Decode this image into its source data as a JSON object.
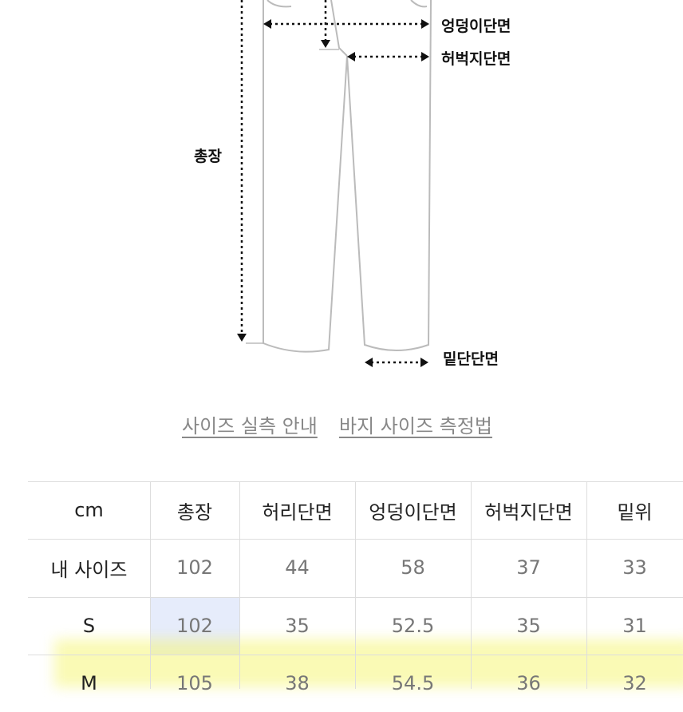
{
  "diagram": {
    "labels": [
      "엉덩이단면",
      "허벅지단면",
      "총장",
      "밑단단면"
    ]
  },
  "links": [
    "사이즈 실측 안내",
    "바지 사이즈 측정법"
  ],
  "table": {
    "header": [
      "cm",
      "총장",
      "허리단면",
      "엉덩이단면",
      "허벅지단면",
      "밑위"
    ],
    "rows": [
      [
        "내 사이즈",
        "102",
        "44",
        "58",
        "37",
        "33"
      ],
      [
        "S",
        "102",
        "35",
        "52.5",
        "35",
        "31"
      ],
      [
        "M",
        "105",
        "38",
        "54.5",
        "36",
        "32"
      ]
    ]
  }
}
